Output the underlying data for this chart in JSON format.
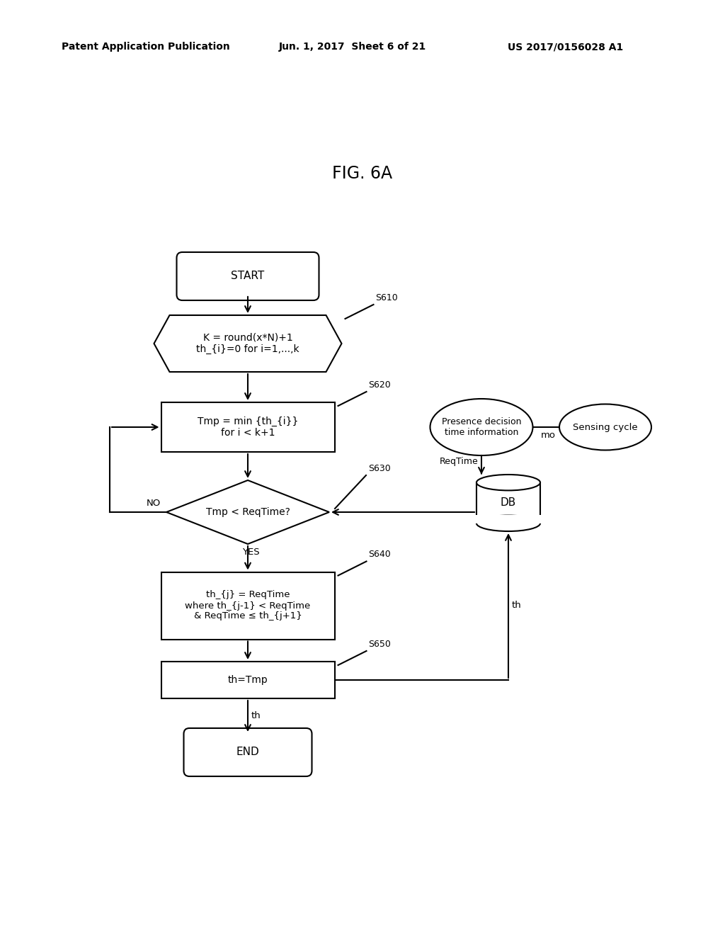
{
  "title_text": "FIG. 6A",
  "header_left": "Patent Application Publication",
  "header_center": "Jun. 1, 2017  Sheet 6 of 21",
  "header_right": "US 2017/0156028 A1",
  "background_color": "#ffffff",
  "fig_width": 10.24,
  "fig_height": 13.2,
  "dpi": 100,
  "nodes": {
    "start": {
      "label": "START",
      "type": "rounded_rect"
    },
    "s610": {
      "label": "K = round(x*N)+1\nth_{i}=0 for i=1,...,k",
      "type": "hexagon",
      "tag": "S610"
    },
    "s620": {
      "label": "Tmp = min {th_{i}}\nfor i < k+1",
      "type": "rect",
      "tag": "S620"
    },
    "s630": {
      "label": "Tmp < ReqTime?",
      "type": "diamond",
      "tag": "S630"
    },
    "s640": {
      "label": "th_{j} = ReqTime\nwhere th_{j-1} < ReqTime\n& ReqTime ≤ th_{j+1}",
      "type": "rect",
      "tag": "S640"
    },
    "s650": {
      "label": "th=Tmp",
      "type": "rect",
      "tag": "S650"
    },
    "end": {
      "label": "END",
      "type": "rounded_rect"
    },
    "presence": {
      "label": "Presence decision\ntime information",
      "type": "ellipse"
    },
    "sensing": {
      "label": "Sensing cycle",
      "type": "ellipse"
    },
    "db": {
      "label": "DB",
      "type": "cylinder"
    }
  }
}
